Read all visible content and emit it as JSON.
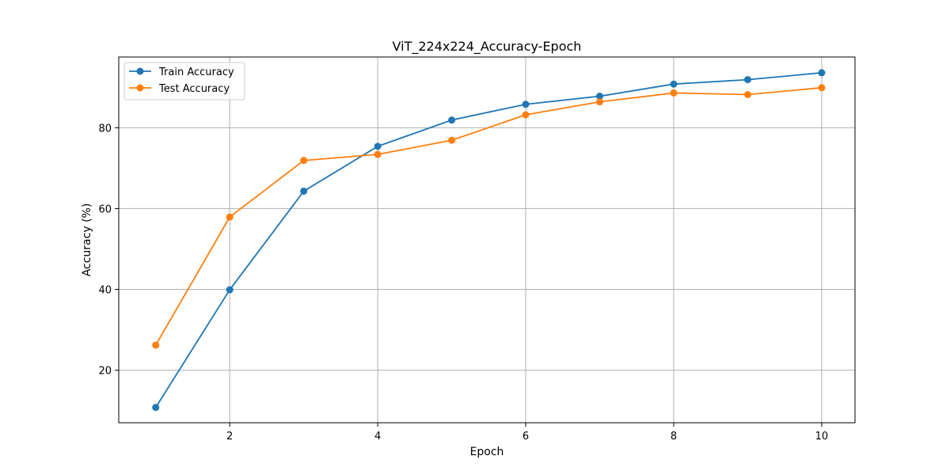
{
  "chart_data": {
    "type": "line",
    "title": "ViT_224x224_Accuracy-Epoch",
    "xlabel": "Epoch",
    "ylabel": "Accuracy (%)",
    "x": [
      1,
      2,
      3,
      4,
      5,
      6,
      7,
      8,
      9,
      10
    ],
    "xlim": [
      0.5,
      10.45
    ],
    "ylim": [
      7.0,
      97.5
    ],
    "xticks": [
      2,
      4,
      6,
      8,
      10
    ],
    "yticks": [
      20,
      40,
      60,
      80
    ],
    "grid": true,
    "legend_position": "top-left",
    "series": [
      {
        "name": "Train Accuracy",
        "color": "#1f77b4",
        "marker": "circle",
        "values": [
          10.8,
          39.9,
          64.3,
          75.4,
          81.9,
          85.8,
          87.8,
          90.8,
          91.9,
          93.6
        ]
      },
      {
        "name": "Test Accuracy",
        "color": "#ff7f0e",
        "marker": "circle",
        "values": [
          26.2,
          57.9,
          71.9,
          73.4,
          76.9,
          83.2,
          86.4,
          88.6,
          88.2,
          89.9
        ]
      }
    ]
  }
}
